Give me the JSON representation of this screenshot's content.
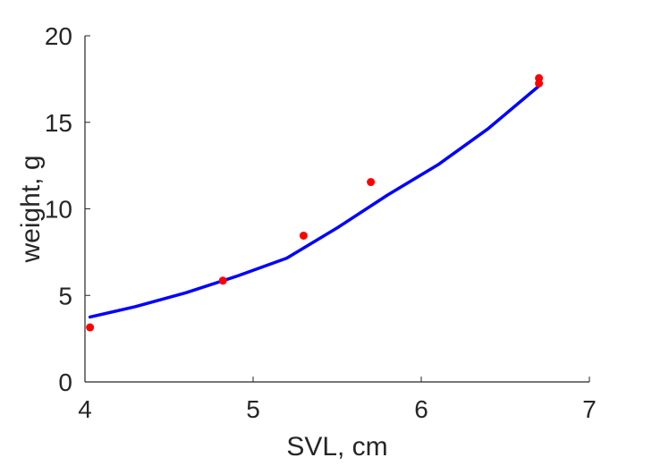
{
  "chart_data": {
    "type": "scatter",
    "title": "",
    "xlabel": "SVL, cm",
    "ylabel": "weight, g",
    "xlim": [
      4,
      7
    ],
    "ylim": [
      0,
      20
    ],
    "xticks": [
      4,
      5,
      6,
      7
    ],
    "yticks": [
      0,
      5,
      10,
      15,
      20
    ],
    "grid": false,
    "legend": "none",
    "series": [
      {
        "kind": "scatter",
        "color": "#ff0000",
        "points": [
          {
            "x": 4.03,
            "y": 3.15
          },
          {
            "x": 4.82,
            "y": 5.85
          },
          {
            "x": 5.3,
            "y": 8.45
          },
          {
            "x": 5.7,
            "y": 11.55
          },
          {
            "x": 6.7,
            "y": 17.25
          },
          {
            "x": 6.7,
            "y": 17.55
          }
        ]
      },
      {
        "kind": "line",
        "color": "#0000ff",
        "points": [
          {
            "x": 4.03,
            "y": 3.75
          },
          {
            "x": 4.3,
            "y": 4.35
          },
          {
            "x": 4.6,
            "y": 5.15
          },
          {
            "x": 4.9,
            "y": 6.1
          },
          {
            "x": 5.2,
            "y": 7.15
          },
          {
            "x": 5.5,
            "y": 8.9
          },
          {
            "x": 5.8,
            "y": 10.8
          },
          {
            "x": 6.1,
            "y": 12.55
          },
          {
            "x": 6.4,
            "y": 14.65
          },
          {
            "x": 6.7,
            "y": 17.1
          }
        ]
      }
    ]
  }
}
